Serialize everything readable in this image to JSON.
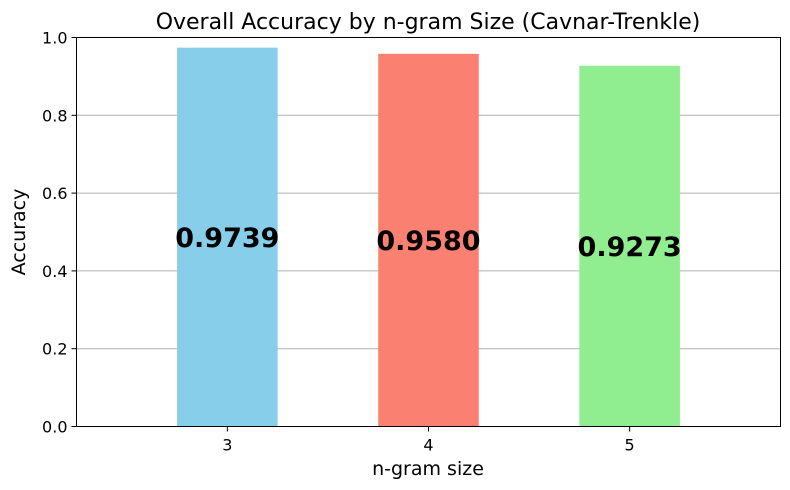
{
  "chart_data": {
    "type": "bar",
    "title": "Overall Accuracy by n-gram Size (Cavnar-Trenkle)",
    "xlabel": "n-gram size",
    "ylabel": "Accuracy",
    "categories": [
      "3",
      "4",
      "5"
    ],
    "values": [
      0.9739,
      0.958,
      0.9273
    ],
    "data_labels": [
      "0.9739",
      "0.9580",
      "0.9273"
    ],
    "colors": [
      "#87ceeb",
      "#fa8072",
      "#90ee90"
    ],
    "ylim": [
      0,
      1.0
    ],
    "y_ticks": [
      "0.0",
      "0.2",
      "0.4",
      "0.6",
      "0.8",
      "1.0"
    ],
    "grid": "y-axis only"
  }
}
